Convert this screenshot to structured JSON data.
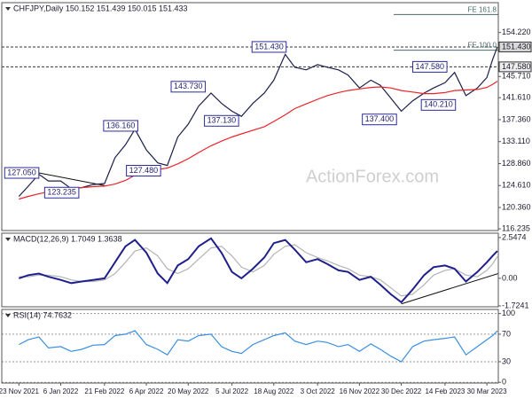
{
  "chart_data": [
    {
      "type": "line",
      "title": "CHFJPY,Daily 150.152 151.439 150.015 151.433",
      "watermark": "ActionForex.com",
      "xlim": [
        "5 Nov 2021",
        "11 Apr 2023"
      ],
      "x": [
        "23 Nov 2021",
        "3 Dec 2021",
        "14 Dec 2021",
        "24 Dec 2021",
        "6 Jan 2022",
        "17 Jan 2022",
        "28 Jan 2022",
        "9 Feb 2022",
        "21 Feb 2022",
        "4 Mar 2022",
        "15 Mar 2022",
        "25 Mar 2022",
        "6 Apr 2022",
        "18 Apr 2022",
        "28 Apr 2022",
        "9 May 2022",
        "20 May 2022",
        "31 May 2022",
        "13 Jun 2022",
        "24 Jun 2022",
        "5 Jul 2022",
        "15 Jul 2022",
        "27 Jul 2022",
        "8 Aug 2022",
        "18 Aug 2022",
        "30 Aug 2022",
        "9 Sep 2022",
        "21 Sep 2022",
        "3 Oct 2022",
        "13 Oct 2022",
        "25 Oct 2022",
        "4 Nov 2022",
        "16 Nov 2022",
        "28 Nov 2022",
        "8 Dec 2022",
        "19 Dec 2022",
        "30 Dec 2022",
        "11 Jan 2023",
        "23 Jan 2023",
        "2 Feb 2023",
        "14 Feb 2023",
        "24 Feb 2023",
        "8 Mar 2023",
        "20 Mar 2023",
        "30 Mar 2023",
        "5 Apr 2023",
        "10 Apr 2023"
      ],
      "ylim": [
        115.9,
        160
      ],
      "yticks": [
        116.235,
        {
          "value": 120.36,
          "label": "120.360"
        },
        {
          "value": 124.61,
          "label": "124.610"
        },
        {
          "value": 128.86,
          "label": "128.860"
        },
        {
          "value": 133.11,
          "label": "133.110"
        },
        {
          "value": 137.36,
          "label": "137.360"
        },
        {
          "value": 141.61,
          "label": "141.610"
        },
        {
          "value": 145.71,
          "label": "145.710"
        },
        {
          "value": 154.22,
          "label": "154.220"
        }
      ],
      "series": [
        {
          "color": "#1b1f4a",
          "values": [
            122.5,
            124.5,
            126.8,
            125.5,
            125.5,
            124.0,
            124.2,
            124.8,
            125.0,
            130.0,
            132.5,
            135.5,
            131.5,
            129.0,
            128.5,
            134.0,
            136.5,
            140.0,
            142.5,
            140.5,
            139.0,
            138.0,
            140.5,
            142.5,
            145.0,
            150.0,
            147.5,
            147.0,
            148.0,
            147.5,
            147.0,
            146.0,
            143.5,
            145.0,
            144.0,
            141.5,
            139.0,
            141.0,
            142.5,
            143.5,
            144.5,
            146.5,
            142.0,
            143.5,
            145.5,
            149.0,
            151.433
          ]
        },
        {
          "color": "#e8242a",
          "values": [
            122.0,
            122.5,
            123.0,
            123.4,
            123.8,
            124.0,
            124.2,
            124.4,
            124.5,
            124.9,
            125.6,
            126.6,
            127.3,
            127.7,
            128.0,
            128.8,
            129.8,
            131.0,
            132.3,
            133.2,
            134.0,
            134.6,
            135.3,
            136.0,
            137.0,
            138.3,
            139.5,
            140.4,
            141.3,
            142.0,
            142.6,
            143.0,
            143.3,
            143.6,
            143.7,
            143.5,
            143.0,
            142.7,
            142.4,
            142.4,
            142.6,
            143.0,
            143.1,
            143.2,
            143.6,
            144.2,
            144.8
          ]
        }
      ],
      "annotations": [
        {
          "x": "14 Dec 2021",
          "value": 127.05,
          "label": "127.050"
        },
        {
          "x": "25 Jan 2022",
          "value": 123.235,
          "label": "123.235"
        },
        {
          "x": "28 Mar 2022",
          "value": 136.16,
          "label": "136.160"
        },
        {
          "x": "21 Apr 2022",
          "value": 127.48,
          "label": "127.480"
        },
        {
          "x": "7 Jun 2022",
          "value": 143.73,
          "label": "143.730"
        },
        {
          "x": "12 Jul 2022",
          "value": 137.13,
          "label": "137.130"
        },
        {
          "x": "31 Aug 2022",
          "value": 151.43,
          "label": "151.430"
        },
        {
          "x": "25 Dec 2022",
          "value": 137.4,
          "label": "137.400"
        },
        {
          "x": "16 Feb 2023",
          "value": 147.58,
          "label": "147.580"
        },
        {
          "x": "25 Feb 2023",
          "value": 140.21,
          "label": "140.210"
        }
      ],
      "levels": [
        {
          "value": 151.43,
          "label": "151.430"
        },
        {
          "value": 147.58,
          "label": "147.580"
        }
      ],
      "fe_lines": [
        {
          "from": "22 Dec 2022",
          "value": 157.7,
          "label": "FE 161.8"
        },
        {
          "from": "22 Dec 2022",
          "value": 150.8,
          "label": "FE 100.0"
        }
      ],
      "trendlines": [
        {
          "from": [
            "14 Dec 2021",
            127.05
          ],
          "to": [
            "21 Feb 2022",
            124.6
          ]
        }
      ]
    },
    {
      "type": "line",
      "title": "MACD(12,26,9) 1.7049 1.3638",
      "xlim": [
        "5 Nov 2021",
        "11 Apr 2023"
      ],
      "x": [
        "23 Nov 2021",
        "3 Dec 2021",
        "14 Dec 2021",
        "24 Dec 2021",
        "6 Jan 2022",
        "17 Jan 2022",
        "28 Jan 2022",
        "9 Feb 2022",
        "21 Feb 2022",
        "4 Mar 2022",
        "15 Mar 2022",
        "25 Mar 2022",
        "6 Apr 2022",
        "18 Apr 2022",
        "28 Apr 2022",
        "9 May 2022",
        "20 May 2022",
        "31 May 2022",
        "13 Jun 2022",
        "24 Jun 2022",
        "5 Jul 2022",
        "15 Jul 2022",
        "27 Jul 2022",
        "8 Aug 2022",
        "18 Aug 2022",
        "30 Aug 2022",
        "9 Sep 2022",
        "21 Sep 2022",
        "3 Oct 2022",
        "13 Oct 2022",
        "25 Oct 2022",
        "4 Nov 2022",
        "16 Nov 2022",
        "28 Nov 2022",
        "8 Dec 2022",
        "19 Dec 2022",
        "30 Dec 2022",
        "11 Jan 2023",
        "23 Jan 2023",
        "2 Feb 2023",
        "14 Feb 2023",
        "24 Feb 2023",
        "8 Mar 2023",
        "20 Mar 2023",
        "30 Mar 2023",
        "5 Apr 2023",
        "10 Apr 2023"
      ],
      "ylim": [
        -1.78,
        2.82
      ],
      "yticks": [
        2.5474,
        {
          "value": 0,
          "label": "0.00"
        },
        -1.7241
      ],
      "series": [
        {
          "color": "#b4b4b4",
          "values": [
            0.1,
            0.1,
            0.2,
            0.2,
            0.1,
            -0.1,
            -0.2,
            -0.2,
            -0.1,
            0.3,
            1.0,
            1.7,
            1.9,
            1.4,
            0.6,
            0.3,
            0.6,
            1.2,
            1.9,
            2.0,
            1.4,
            0.7,
            0.4,
            0.8,
            1.5,
            2.0,
            2.1,
            1.6,
            1.3,
            1.1,
            0.8,
            0.6,
            0.2,
            0.1,
            -0.1,
            -0.6,
            -1.1,
            -1.0,
            -0.4,
            0.2,
            0.5,
            0.6,
            0.2,
            0.1,
            0.5,
            0.9,
            1.3638
          ]
        },
        {
          "color": "#1f1f8c",
          "values": [
            0.0,
            0.2,
            0.3,
            0.1,
            -0.1,
            -0.3,
            -0.2,
            -0.1,
            0.0,
            1.0,
            2.0,
            2.4,
            1.6,
            0.3,
            -0.3,
            0.8,
            1.2,
            2.0,
            2.5,
            1.6,
            0.4,
            0.0,
            0.6,
            1.3,
            2.2,
            2.4,
            1.8,
            1.0,
            1.2,
            0.9,
            0.5,
            0.4,
            -0.1,
            0.1,
            -0.4,
            -1.0,
            -1.5,
            -0.7,
            0.2,
            0.7,
            0.8,
            0.6,
            -0.2,
            0.4,
            1.0,
            1.4,
            1.7049
          ]
        }
      ],
      "trendlines": [
        {
          "from": [
            "30 Dec 2022",
            -1.6
          ],
          "to": [
            "11 Apr 2023",
            0.3
          ]
        }
      ]
    },
    {
      "type": "line",
      "title": "RSI(14) 74.7632",
      "grid": "dotted",
      "xlim": [
        "5 Nov 2021",
        "11 Apr 2023"
      ],
      "x": [
        "23 Nov 2021",
        "3 Dec 2021",
        "14 Dec 2021",
        "24 Dec 2021",
        "6 Jan 2022",
        "17 Jan 2022",
        "28 Jan 2022",
        "9 Feb 2022",
        "21 Feb 2022",
        "4 Mar 2022",
        "15 Mar 2022",
        "25 Mar 2022",
        "6 Apr 2022",
        "18 Apr 2022",
        "28 Apr 2022",
        "9 May 2022",
        "20 May 2022",
        "31 May 2022",
        "13 Jun 2022",
        "24 Jun 2022",
        "5 Jul 2022",
        "15 Jul 2022",
        "27 Jul 2022",
        "8 Aug 2022",
        "18 Aug 2022",
        "30 Aug 2022",
        "9 Sep 2022",
        "21 Sep 2022",
        "3 Oct 2022",
        "13 Oct 2022",
        "25 Oct 2022",
        "4 Nov 2022",
        "16 Nov 2022",
        "28 Nov 2022",
        "8 Dec 2022",
        "19 Dec 2022",
        "30 Dec 2022",
        "11 Jan 2023",
        "23 Jan 2023",
        "2 Feb 2023",
        "14 Feb 2023",
        "24 Feb 2023",
        "8 Mar 2023",
        "20 Mar 2023",
        "30 Mar 2023",
        "5 Apr 2023",
        "10 Apr 2023"
      ],
      "ylim": [
        -1,
        106
      ],
      "yticks": [
        100,
        70,
        30,
        0
      ],
      "xticks": [
        "23 Nov 2021",
        "6 Jan 2022",
        "21 Feb 2022",
        "6 Apr 2022",
        "20 May 2022",
        "5 Jul 2022",
        "18 Aug 2022",
        "3 Oct 2022",
        "16 Nov 2022",
        "30 Dec 2022",
        "14 Feb 2023",
        "30 Mar 2023"
      ],
      "series": [
        {
          "color": "#3b8fe0",
          "values": [
            55,
            62,
            66,
            50,
            52,
            45,
            48,
            54,
            55,
            68,
            70,
            75,
            55,
            48,
            40,
            62,
            60,
            68,
            70,
            52,
            45,
            42,
            55,
            62,
            68,
            72,
            60,
            55,
            60,
            58,
            52,
            55,
            45,
            56,
            48,
            38,
            30,
            52,
            60,
            62,
            64,
            66,
            40,
            52,
            62,
            68,
            74.7632
          ]
        }
      ]
    }
  ]
}
